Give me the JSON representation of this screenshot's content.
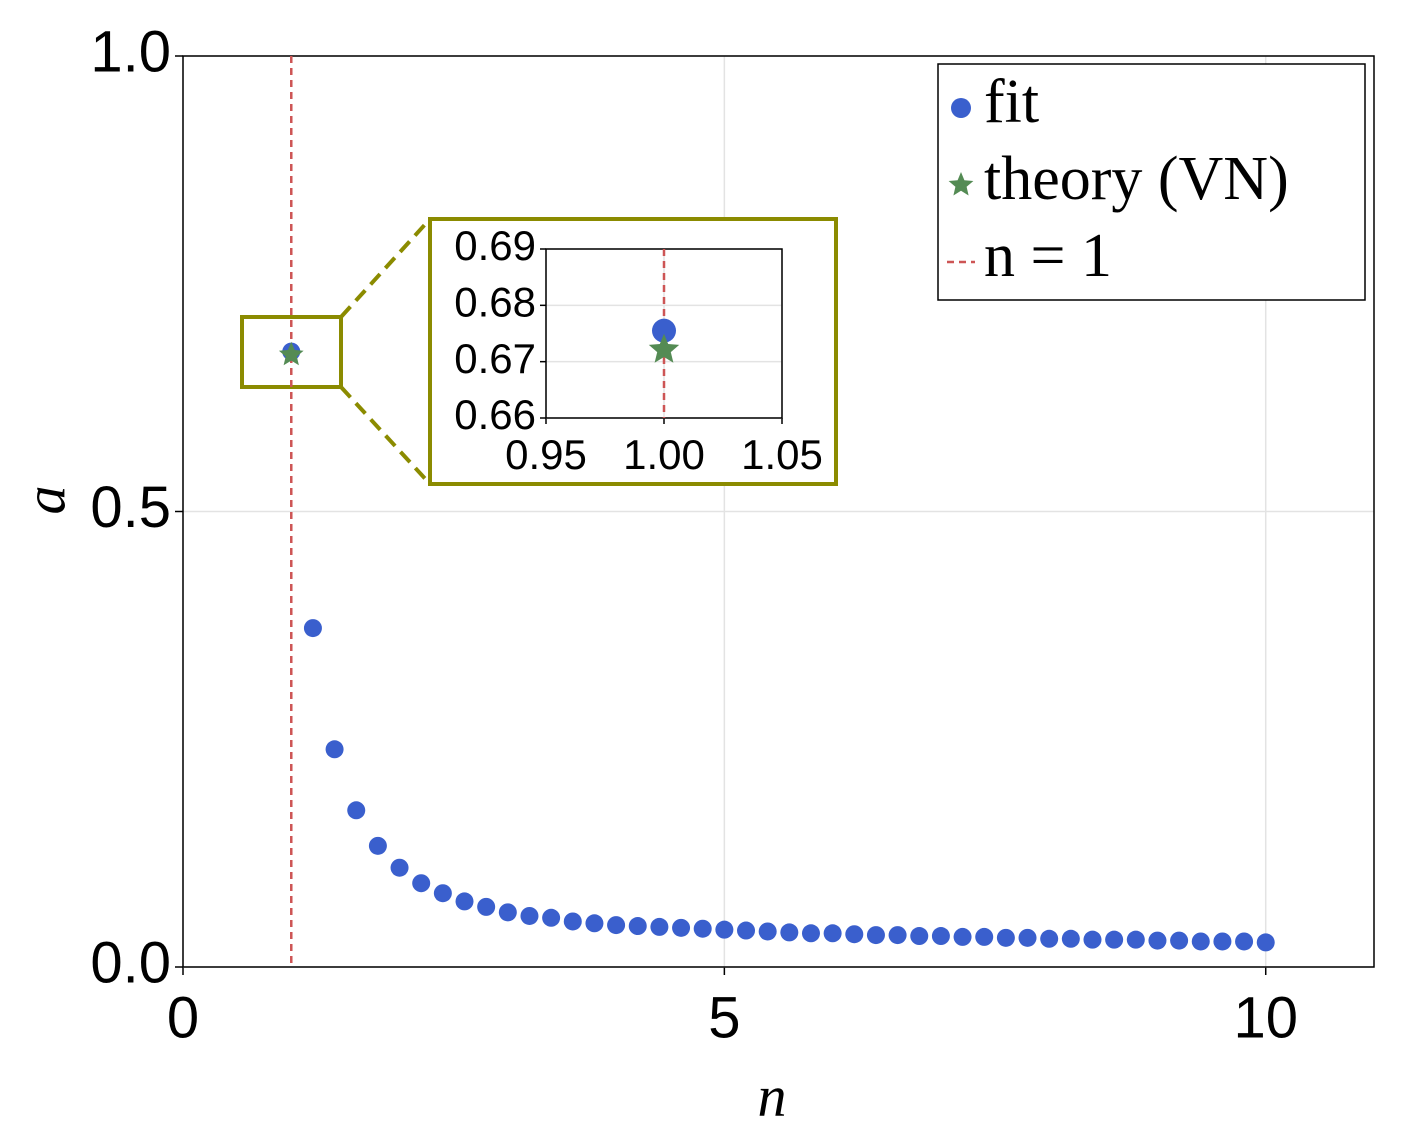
{
  "chart_data": [
    {
      "type": "scatter",
      "xlabel": "n",
      "ylabel": "a",
      "xlim": [
        0,
        11
      ],
      "ylim": [
        0,
        1
      ],
      "xticks": [
        0,
        5,
        10
      ],
      "yticks": [
        {
          "value": 0,
          "label": "0.0"
        },
        0.5,
        {
          "value": 1,
          "label": "1.0"
        }
      ],
      "grid": true,
      "legend": "upper right",
      "series": [
        {
          "name": "fit",
          "color": "#3a5fcd",
          "marker": "circle",
          "x": [
            1,
            1.2,
            1.4,
            1.6,
            1.8,
            2,
            2.2,
            2.4,
            2.6,
            2.8,
            3,
            3.2,
            3.4,
            3.6,
            3.8,
            4,
            4.2,
            4.4,
            4.6,
            4.8,
            5,
            5.2,
            5.4,
            5.6,
            5.8,
            6,
            6.2,
            6.4,
            6.6,
            6.8,
            7,
            7.2,
            7.4,
            7.6,
            7.8,
            8,
            8.2,
            8.4,
            8.6,
            8.8,
            9,
            9.2,
            9.4,
            9.6,
            9.8,
            10
          ],
          "values": [
            0.6755,
            0.372,
            0.239,
            0.172,
            0.133,
            0.109,
            0.092,
            0.081,
            0.072,
            0.066,
            0.06,
            0.056,
            0.054,
            0.05,
            0.048,
            0.046,
            0.045,
            0.044,
            0.043,
            0.042,
            0.041,
            0.04,
            0.039,
            0.038,
            0.037,
            0.037,
            0.036,
            0.035,
            0.035,
            0.034,
            0.034,
            0.033,
            0.033,
            0.032,
            0.032,
            0.031,
            0.031,
            0.03,
            0.03,
            0.03,
            0.029,
            0.029,
            0.028,
            0.028,
            0.028,
            0.027
          ]
        },
        {
          "name": "theory (VN)",
          "color": "#548b54",
          "marker": "star",
          "x": [
            1
          ],
          "values": [
            0.6721
          ]
        },
        {
          "name": "n = 1",
          "color": "#cd5555",
          "marker": "vline",
          "x": [
            1
          ]
        }
      ]
    },
    {
      "type": "scatter",
      "xlim": [
        0.95,
        1.05
      ],
      "ylim": [
        0.66,
        0.69
      ],
      "xticks": [
        0.95,
        {
          "value": 1,
          "label": "1.00"
        },
        1.05
      ],
      "yticks": [
        0.66,
        0.67,
        0.68,
        0.69
      ],
      "grid": true,
      "series": [
        {
          "color": "#3a5fcd",
          "marker": "circle",
          "x": [
            1
          ],
          "values": [
            0.6755
          ]
        },
        {
          "color": "#548b54",
          "marker": "star",
          "x": [
            1
          ],
          "values": [
            0.6721
          ]
        },
        {
          "color": "#cd5555",
          "marker": "vline",
          "x": [
            1
          ]
        }
      ]
    }
  ]
}
